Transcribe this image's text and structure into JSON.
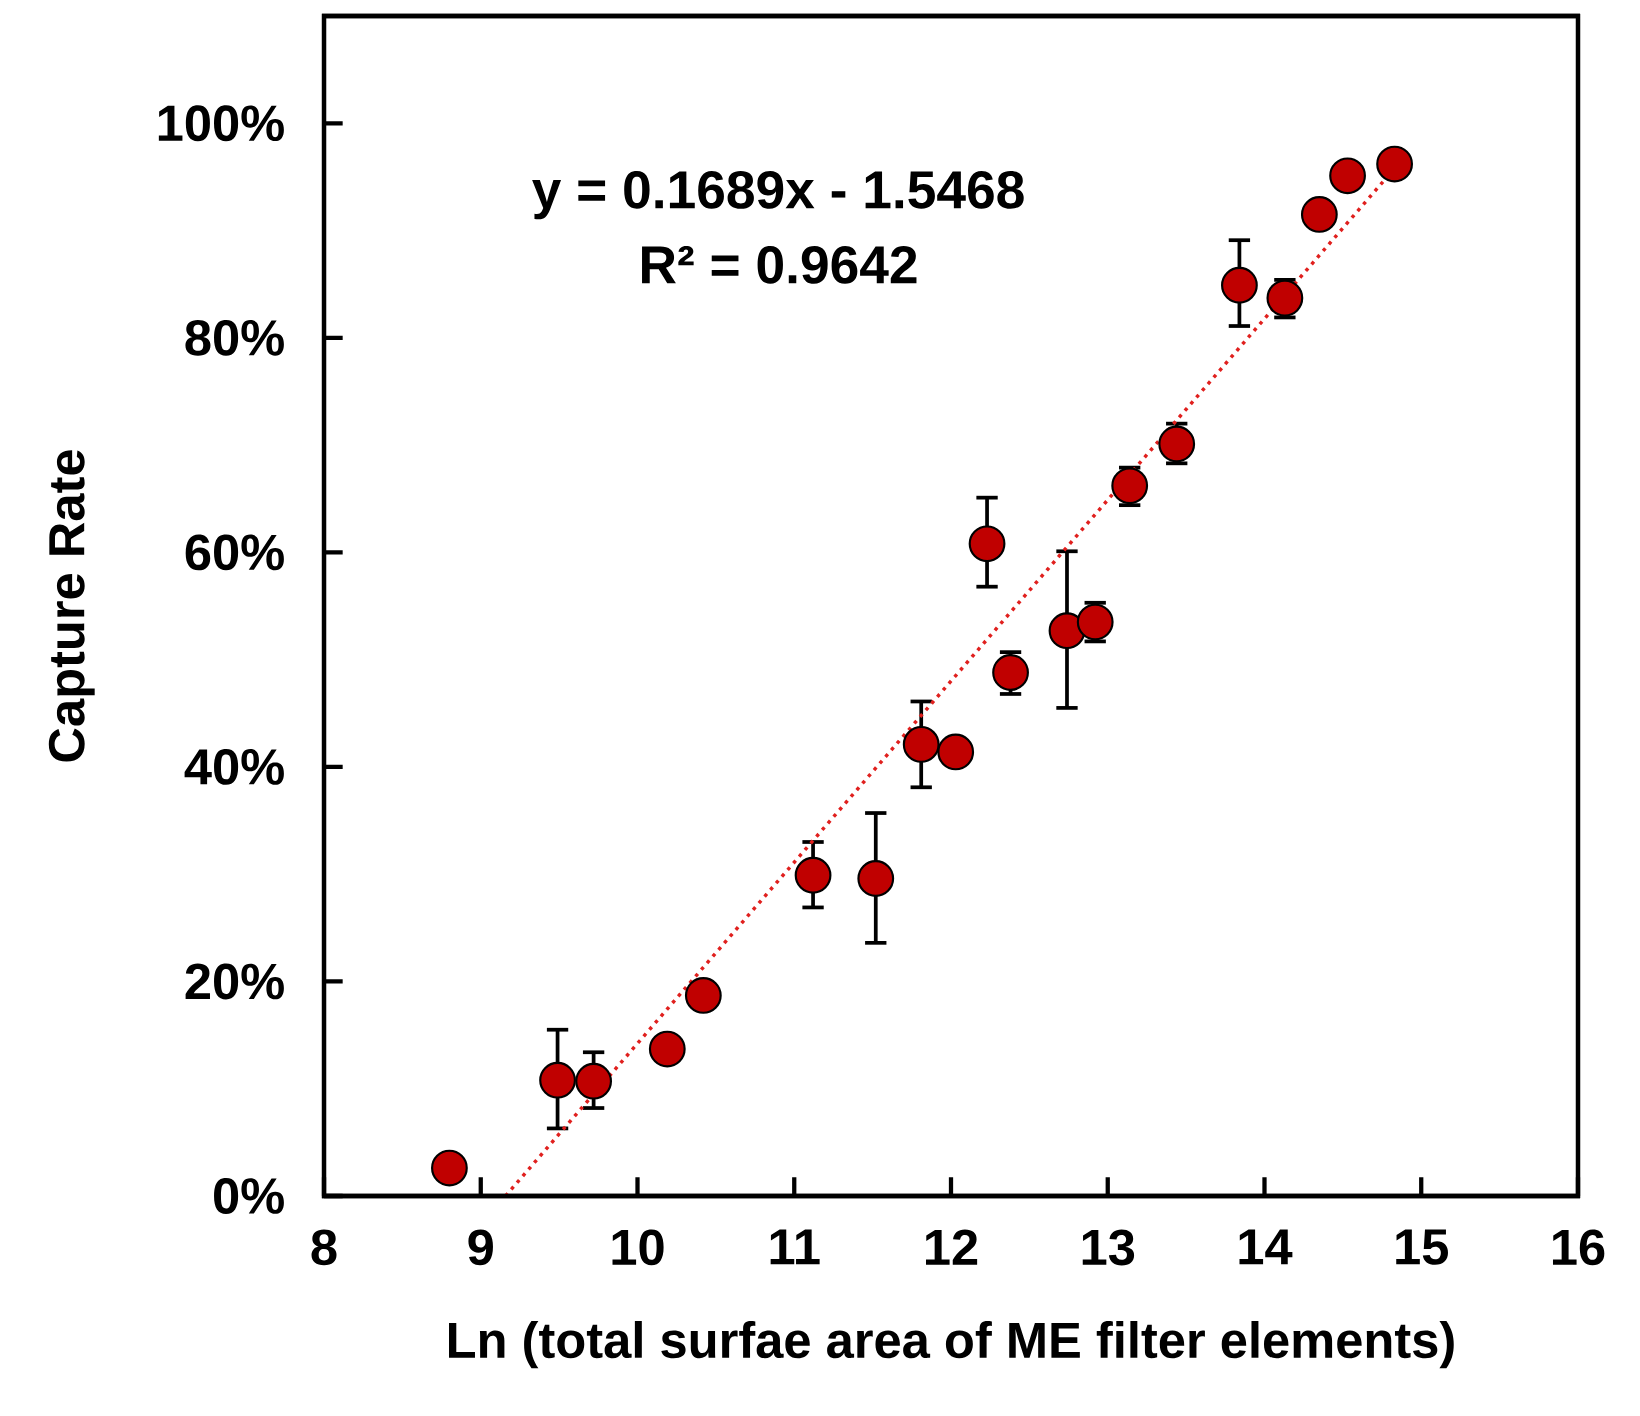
{
  "chart_data": {
    "type": "scatter",
    "xlabel": "Ln (total surfae area of ME filter elements)",
    "ylabel": "Capture Rate",
    "annotations": [
      "y = 0.1689x - 1.5468",
      "R² = 0.9642"
    ],
    "xlim": [
      8,
      16
    ],
    "xticks": [
      8,
      9,
      10,
      11,
      12,
      13,
      14,
      15,
      16
    ],
    "ylim": [
      0,
      1.1
    ],
    "yticks": [
      {
        "value": 0,
        "label": "0%"
      },
      {
        "value": 0.2,
        "label": "20%"
      },
      {
        "value": 0.4,
        "label": "40%"
      },
      {
        "value": 0.6,
        "label": "60%"
      },
      {
        "value": 0.8,
        "label": "80%"
      },
      {
        "value": 1.0,
        "label": "100%"
      }
    ],
    "series": [
      {
        "type": "scatter",
        "color": "#c00000",
        "marker": "circle",
        "x": [
          8.8,
          9.49,
          9.72,
          10.19,
          10.42,
          11.12,
          11.52,
          11.81,
          12.03,
          12.23,
          12.38,
          12.74,
          12.92,
          13.14,
          13.44,
          13.84,
          14.13,
          14.35,
          14.53,
          14.83
        ],
        "values": [
          0.026,
          0.108,
          0.107,
          0.137,
          0.187,
          0.299,
          0.296,
          0.421,
          0.414,
          0.608,
          0.488,
          0.527,
          0.535,
          0.662,
          0.701,
          0.849,
          0.837,
          0.915,
          0.951,
          0.962
        ],
        "errors": [
          null,
          [
            0.063,
            0.155
          ],
          [
            0.082,
            0.134
          ],
          null,
          null,
          [
            0.269,
            0.33
          ],
          [
            0.236,
            0.357
          ],
          [
            0.381,
            0.461
          ],
          null,
          [
            0.568,
            0.651
          ],
          [
            0.468,
            0.507
          ],
          [
            0.455,
            0.601
          ],
          [
            0.517,
            0.553
          ],
          [
            0.644,
            0.679
          ],
          [
            0.683,
            0.72
          ],
          [
            0.811,
            0.891
          ],
          [
            0.819,
            0.854
          ],
          null,
          null,
          null
        ]
      },
      {
        "type": "line",
        "color": "#e0201e",
        "line_style": "dotted",
        "marker": "none",
        "x": [
          9.158,
          14.83
        ],
        "values": [
          0,
          0.958
        ]
      }
    ]
  }
}
